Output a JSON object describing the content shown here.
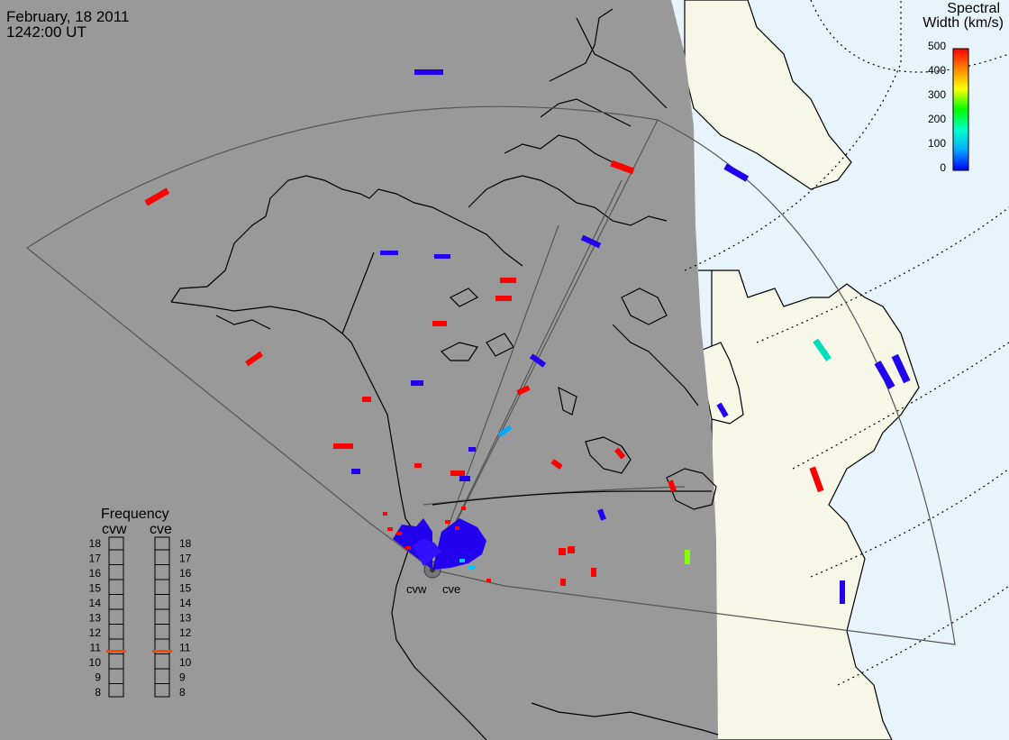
{
  "header": {
    "date": "February, 18 2011",
    "time": "1242:00 UT"
  },
  "colorbar": {
    "title_line1": "Spectral",
    "title_line2": "Width (km/s)",
    "ticks": [
      "500",
      "400",
      "300",
      "200",
      "100",
      "0"
    ],
    "min": 0,
    "max": 500,
    "stops": [
      "#0000ff",
      "#00aaff",
      "#00ffcc",
      "#00ff00",
      "#ffff00",
      "#ff8800",
      "#ff0000"
    ]
  },
  "frequency": {
    "title": "Frequency",
    "left_label": "cvw",
    "right_label": "cve",
    "ticks": [
      "18",
      "17",
      "16",
      "15",
      "14",
      "13",
      "12",
      "11",
      "10",
      "9",
      "8"
    ],
    "cvw_value_mhz": 10.7,
    "cve_value_mhz": 10.7,
    "marker_color": "#ff4400"
  },
  "radars": {
    "west_label": "cvw",
    "east_label": "cve"
  },
  "colors": {
    "night": "#999999",
    "day_land": "#f7f7e8",
    "day_ocean": "#e8f4fc",
    "low_width": "#2200ee",
    "high_width": "#ff0000"
  }
}
